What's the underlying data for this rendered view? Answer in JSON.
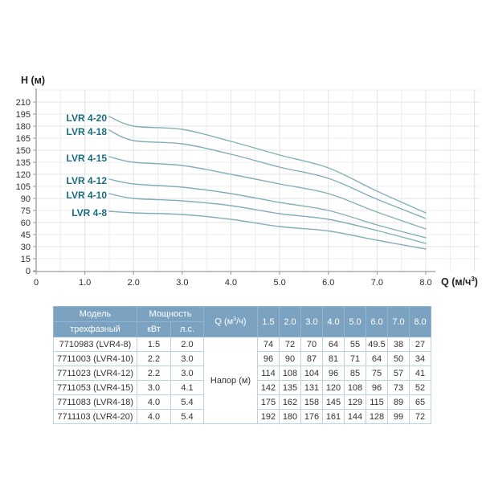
{
  "colors": {
    "curve": "#85afb7",
    "series_label": "#176d80",
    "grid_minor": "#ededed",
    "grid_major": "#e3e3e3",
    "axis": "#9a9a9a",
    "tick_text": "#2e2e2e",
    "axis_title_text": "#1e1e1e",
    "table_header_bg": "#7ba2c1",
    "table_header_border": "#93b6d0",
    "table_cell_border": "#b9d2e4",
    "table_text": "#333333"
  },
  "chart_data": {
    "type": "line",
    "title": "",
    "ylabel": "H (м)",
    "xlabel": "Q (м/ч³)",
    "xlabel_parts": {
      "prefix": "Q (м/ч",
      "sup": "3",
      "suffix": ")"
    },
    "x": [
      1.5,
      2.0,
      3.0,
      4.0,
      5.0,
      6.0,
      7.0,
      8.0
    ],
    "series": [
      {
        "name": "LVR 4-20",
        "values": [
          192,
          180,
          176,
          161,
          144,
          128,
          99,
          72
        ]
      },
      {
        "name": "LVR 4-18",
        "values": [
          175,
          162,
          158,
          145,
          129,
          115,
          89,
          65
        ]
      },
      {
        "name": "LVR 4-15",
        "values": [
          142,
          135,
          131,
          120,
          108,
          96,
          73,
          52
        ]
      },
      {
        "name": "LVR 4-12",
        "values": [
          114,
          108,
          104,
          96,
          85,
          75,
          57,
          41
        ]
      },
      {
        "name": "LVR 4-10",
        "values": [
          96,
          90,
          87,
          81,
          71,
          64,
          50,
          34
        ]
      },
      {
        "name": "LVR 4-8",
        "values": [
          74,
          72,
          70,
          64,
          55,
          49.5,
          38,
          27
        ]
      }
    ],
    "xlim": [
      0,
      9.1
    ],
    "ylim": [
      0,
      225
    ],
    "x_tick_labels": [
      "0",
      "1.0",
      "2.0",
      "3.0",
      "4.0",
      "5.0",
      "6.0",
      "7.0",
      "8.0"
    ],
    "y_tick_labels": [
      "0",
      "15",
      "30",
      "45",
      "60",
      "75",
      "90",
      "105",
      "120",
      "135",
      "150",
      "165",
      "180",
      "195",
      "210"
    ],
    "grid": true,
    "legend_position": "labels-at-curve-start"
  },
  "table": {
    "header": {
      "model_top": "Модель",
      "model_bottom": "трехфазный",
      "power_top": "Мощность",
      "power_kw": "кВт",
      "power_hp": "л.с.",
      "q_parts": {
        "prefix": "Q (м",
        "sup": "3",
        "suffix": "/ч)"
      },
      "flow": [
        "1.5",
        "2.0",
        "3.0",
        "4.0",
        "5.0",
        "6.0",
        "7.0",
        "8.0"
      ],
      "head_label": "Напор (м)"
    },
    "rows": [
      {
        "model": "7710983 (LVR4-8)",
        "kw": "1.5",
        "hp": "2.0",
        "head": [
          "74",
          "72",
          "70",
          "64",
          "55",
          "49.5",
          "38",
          "27"
        ]
      },
      {
        "model": "7711003 (LVR4-10)",
        "kw": "2.2",
        "hp": "3.0",
        "head": [
          "96",
          "90",
          "87",
          "81",
          "71",
          "64",
          "50",
          "34"
        ]
      },
      {
        "model": "7711023 (LVR4-12)",
        "kw": "2.2",
        "hp": "3.0",
        "head": [
          "114",
          "108",
          "104",
          "96",
          "85",
          "75",
          "57",
          "41"
        ]
      },
      {
        "model": "7711053 (LVR4-15)",
        "kw": "3.0",
        "hp": "4.1",
        "head": [
          "142",
          "135",
          "131",
          "120",
          "108",
          "96",
          "73",
          "52"
        ]
      },
      {
        "model": "7711083 (LVR4-18)",
        "kw": "4.0",
        "hp": "5.4",
        "head": [
          "175",
          "162",
          "158",
          "145",
          "129",
          "115",
          "89",
          "65"
        ]
      },
      {
        "model": "7711103 (LVR4-20)",
        "kw": "4.0",
        "hp": "5.4",
        "head": [
          "192",
          "180",
          "176",
          "161",
          "144",
          "128",
          "99",
          "72"
        ]
      }
    ]
  }
}
